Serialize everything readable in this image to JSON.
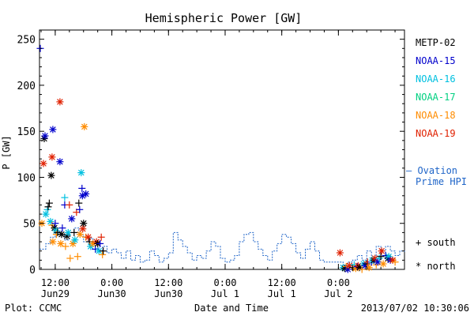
{
  "chart_data": {
    "type": "scatter",
    "title": "Hemispheric Power [GW]",
    "ylabel": "P [GW]",
    "xlabel": "Date and Time",
    "ylim": [
      0,
      260
    ],
    "xlim": [
      "2013-06-29T08:40",
      "2013-07-02T14:00"
    ],
    "yticks": [
      0,
      50,
      100,
      150,
      200,
      250
    ],
    "xticks": [
      {
        "t": "2013-06-29T12:00",
        "line1": "12:00",
        "line2": "Jun29"
      },
      {
        "t": "2013-06-30T00:00",
        "line1": "0:00",
        "line2": "Jun30"
      },
      {
        "t": "2013-06-30T12:00",
        "line1": "12:00",
        "line2": "Jun30"
      },
      {
        "t": "2013-07-01T00:00",
        "line1": "0:00",
        "line2": "Jul 1"
      },
      {
        "t": "2013-07-01T12:00",
        "line1": "12:00",
        "line2": "Jul 1"
      },
      {
        "t": "2013-07-02T00:00",
        "line1": "0:00",
        "line2": "Jul 2"
      }
    ],
    "legend": [
      {
        "name": "METP-02",
        "color": "#000000"
      },
      {
        "name": "NOAA-15",
        "color": "#0000cc"
      },
      {
        "name": "NOAA-16",
        "color": "#00c0e0"
      },
      {
        "name": "NOAA-17",
        "color": "#00d080"
      },
      {
        "name": "NOAA-18",
        "color": "#ff8c00"
      },
      {
        "name": "NOAA-19",
        "color": "#e02000"
      }
    ],
    "ovation_label": [
      "— Ovation",
      "Prime HPI"
    ],
    "ovation_color": "#1e64c8",
    "marker_legend": [
      {
        "symbol": "+",
        "label": "south"
      },
      {
        "symbol": "*",
        "label": "north"
      }
    ],
    "ovation": [
      [
        "2013-06-29T08:40",
        22
      ],
      [
        "2013-06-29T10:00",
        28
      ],
      [
        "2013-06-29T11:00",
        35
      ],
      [
        "2013-06-29T12:00",
        42
      ],
      [
        "2013-06-29T13:00",
        38
      ],
      [
        "2013-06-29T14:00",
        32
      ],
      [
        "2013-06-29T15:00",
        40
      ],
      [
        "2013-06-29T16:00",
        45
      ],
      [
        "2013-06-29T17:00",
        38
      ],
      [
        "2013-06-29T18:00",
        30
      ],
      [
        "2013-06-29T19:00",
        34
      ],
      [
        "2013-06-29T20:00",
        28
      ],
      [
        "2013-06-29T21:00",
        20
      ],
      [
        "2013-06-29T22:00",
        25
      ],
      [
        "2013-06-29T23:00",
        18
      ],
      [
        "2013-06-30T00:00",
        22
      ],
      [
        "2013-06-30T01:00",
        18
      ],
      [
        "2013-06-30T02:00",
        12
      ],
      [
        "2013-06-30T03:00",
        20
      ],
      [
        "2013-06-30T04:00",
        10
      ],
      [
        "2013-06-30T05:00",
        15
      ],
      [
        "2013-06-30T06:00",
        8
      ],
      [
        "2013-06-30T07:00",
        10
      ],
      [
        "2013-06-30T08:00",
        20
      ],
      [
        "2013-06-30T09:00",
        15
      ],
      [
        "2013-06-30T10:00",
        8
      ],
      [
        "2013-06-30T11:00",
        12
      ],
      [
        "2013-06-30T12:00",
        18
      ],
      [
        "2013-06-30T13:00",
        40
      ],
      [
        "2013-06-30T14:00",
        32
      ],
      [
        "2013-06-30T15:00",
        25
      ],
      [
        "2013-06-30T16:00",
        18
      ],
      [
        "2013-06-30T17:00",
        10
      ],
      [
        "2013-06-30T18:00",
        15
      ],
      [
        "2013-06-30T19:00",
        12
      ],
      [
        "2013-06-30T20:00",
        20
      ],
      [
        "2013-06-30T21:00",
        30
      ],
      [
        "2013-06-30T22:00",
        25
      ],
      [
        "2013-06-30T23:00",
        12
      ],
      [
        "2013-07-01T00:00",
        8
      ],
      [
        "2013-07-01T01:00",
        10
      ],
      [
        "2013-07-01T02:00",
        15
      ],
      [
        "2013-07-01T03:00",
        30
      ],
      [
        "2013-07-01T04:00",
        38
      ],
      [
        "2013-07-01T05:00",
        40
      ],
      [
        "2013-07-01T06:00",
        30
      ],
      [
        "2013-07-01T07:00",
        22
      ],
      [
        "2013-07-01T08:00",
        15
      ],
      [
        "2013-07-01T09:00",
        10
      ],
      [
        "2013-07-01T10:00",
        20
      ],
      [
        "2013-07-01T11:00",
        28
      ],
      [
        "2013-07-01T12:00",
        38
      ],
      [
        "2013-07-01T13:00",
        35
      ],
      [
        "2013-07-01T14:00",
        28
      ],
      [
        "2013-07-01T15:00",
        18
      ],
      [
        "2013-07-01T16:00",
        12
      ],
      [
        "2013-07-01T17:00",
        22
      ],
      [
        "2013-07-01T18:00",
        30
      ],
      [
        "2013-07-01T19:00",
        20
      ],
      [
        "2013-07-01T20:00",
        10
      ],
      [
        "2013-07-01T21:00",
        8
      ],
      [
        "2013-07-01T22:00",
        8
      ],
      [
        "2013-07-01T23:00",
        8
      ],
      [
        "2013-07-02T00:00",
        8
      ],
      [
        "2013-07-02T01:00",
        5
      ],
      [
        "2013-07-02T02:00",
        8
      ],
      [
        "2013-07-02T03:00",
        10
      ],
      [
        "2013-07-02T04:00",
        15
      ],
      [
        "2013-07-02T05:00",
        10
      ],
      [
        "2013-07-02T06:00",
        20
      ],
      [
        "2013-07-02T07:00",
        12
      ],
      [
        "2013-07-02T08:00",
        25
      ],
      [
        "2013-07-02T09:00",
        15
      ],
      [
        "2013-07-02T10:00",
        25
      ],
      [
        "2013-07-02T11:00",
        20
      ],
      [
        "2013-07-02T12:00",
        15
      ],
      [
        "2013-07-02T13:00",
        20
      ],
      [
        "2013-07-02T14:00",
        18
      ]
    ],
    "points": [
      {
        "sat": "NOAA-15",
        "hemi": "south",
        "t": "2013-06-29T08:50",
        "v": 240
      },
      {
        "sat": "NOAA-19",
        "hemi": "north",
        "t": "2013-06-29T09:30",
        "v": 115
      },
      {
        "sat": "METP-02",
        "hemi": "north",
        "t": "2013-06-29T09:40",
        "v": 142
      },
      {
        "sat": "NOAA-15",
        "hemi": "north",
        "t": "2013-06-29T09:50",
        "v": 145
      },
      {
        "sat": "NOAA-18",
        "hemi": "north",
        "t": "2013-06-29T09:10",
        "v": 50
      },
      {
        "sat": "NOAA-16",
        "hemi": "north",
        "t": "2013-06-29T10:00",
        "v": 60
      },
      {
        "sat": "NOAA-16",
        "hemi": "south",
        "t": "2013-06-29T10:20",
        "v": 65
      },
      {
        "sat": "METP-02",
        "hemi": "south",
        "t": "2013-06-29T10:30",
        "v": 68
      },
      {
        "sat": "METP-02",
        "hemi": "south",
        "t": "2013-06-29T10:45",
        "v": 72
      },
      {
        "sat": "NOAA-19",
        "hemi": "north",
        "t": "2013-06-29T11:20",
        "v": 122
      },
      {
        "sat": "NOAA-15",
        "hemi": "north",
        "t": "2013-06-29T11:30",
        "v": 152
      },
      {
        "sat": "METP-02",
        "hemi": "north",
        "t": "2013-06-29T11:10",
        "v": 102
      },
      {
        "sat": "NOAA-16",
        "hemi": "north",
        "t": "2013-06-29T11:00",
        "v": 52
      },
      {
        "sat": "NOAA-18",
        "hemi": "south",
        "t": "2013-06-29T11:20",
        "v": 48
      },
      {
        "sat": "NOAA-18",
        "hemi": "north",
        "t": "2013-06-29T11:30",
        "v": 30
      },
      {
        "sat": "METP-02",
        "hemi": "north",
        "t": "2013-06-29T11:50",
        "v": 45
      },
      {
        "sat": "NOAA-15",
        "hemi": "south",
        "t": "2013-06-29T12:00",
        "v": 50
      },
      {
        "sat": "NOAA-16",
        "hemi": "north",
        "t": "2013-06-29T12:10",
        "v": 42
      },
      {
        "sat": "NOAA-18",
        "hemi": "south",
        "t": "2013-06-29T12:15",
        "v": 38
      },
      {
        "sat": "METP-02",
        "hemi": "south",
        "t": "2013-06-29T12:30",
        "v": 40
      },
      {
        "sat": "NOAA-15",
        "hemi": "north",
        "t": "2013-06-29T13:00",
        "v": 117
      },
      {
        "sat": "NOAA-19",
        "hemi": "north",
        "t": "2013-06-29T13:00",
        "v": 182
      },
      {
        "sat": "NOAA-18",
        "hemi": "north",
        "t": "2013-06-29T13:10",
        "v": 28
      },
      {
        "sat": "METP-02",
        "hemi": "north",
        "t": "2013-06-29T13:20",
        "v": 38
      },
      {
        "sat": "NOAA-15",
        "hemi": "south",
        "t": "2013-06-29T13:30",
        "v": 45
      },
      {
        "sat": "NOAA-16",
        "hemi": "south",
        "t": "2013-06-29T14:00",
        "v": 78
      },
      {
        "sat": "NOAA-15",
        "hemi": "south",
        "t": "2013-06-29T14:00",
        "v": 70
      },
      {
        "sat": "NOAA-18",
        "hemi": "south",
        "t": "2013-06-29T14:10",
        "v": 25
      },
      {
        "sat": "METP-02",
        "hemi": "north",
        "t": "2013-06-29T14:30",
        "v": 36
      },
      {
        "sat": "NOAA-16",
        "hemi": "north",
        "t": "2013-06-29T14:45",
        "v": 40
      },
      {
        "sat": "NOAA-19",
        "hemi": "south",
        "t": "2013-06-29T15:00",
        "v": 70
      },
      {
        "sat": "NOAA-18",
        "hemi": "south",
        "t": "2013-06-29T15:10",
        "v": 12
      },
      {
        "sat": "NOAA-15",
        "hemi": "north",
        "t": "2013-06-29T15:30",
        "v": 55
      },
      {
        "sat": "NOAA-18",
        "hemi": "north",
        "t": "2013-06-29T15:45",
        "v": 28
      },
      {
        "sat": "METP-02",
        "hemi": "south",
        "t": "2013-06-29T16:00",
        "v": 40
      },
      {
        "sat": "NOAA-16",
        "hemi": "north",
        "t": "2013-06-29T16:10",
        "v": 32
      },
      {
        "sat": "NOAA-19",
        "hemi": "south",
        "t": "2013-06-29T16:30",
        "v": 62
      },
      {
        "sat": "NOAA-18",
        "hemi": "south",
        "t": "2013-06-29T16:45",
        "v": 14
      },
      {
        "sat": "METP-02",
        "hemi": "south",
        "t": "2013-06-29T17:00",
        "v": 72
      },
      {
        "sat": "NOAA-15",
        "hemi": "south",
        "t": "2013-06-29T17:10",
        "v": 65
      },
      {
        "sat": "NOAA-18",
        "hemi": "north",
        "t": "2013-06-29T17:15",
        "v": 38
      },
      {
        "sat": "NOAA-16",
        "hemi": "north",
        "t": "2013-06-29T17:30",
        "v": 105
      },
      {
        "sat": "NOAA-15",
        "hemi": "south",
        "t": "2013-06-29T17:40",
        "v": 88
      },
      {
        "sat": "NOAA-15",
        "hemi": "north",
        "t": "2013-06-29T17:45",
        "v": 80
      },
      {
        "sat": "NOAA-19",
        "hemi": "north",
        "t": "2013-06-29T17:50",
        "v": 44
      },
      {
        "sat": "METP-02",
        "hemi": "north",
        "t": "2013-06-29T18:00",
        "v": 50
      },
      {
        "sat": "NOAA-18",
        "hemi": "north",
        "t": "2013-06-29T18:10",
        "v": 155
      },
      {
        "sat": "NOAA-15",
        "hemi": "north",
        "t": "2013-06-29T18:30",
        "v": 82
      },
      {
        "sat": "NOAA-18",
        "hemi": "south",
        "t": "2013-06-29T18:30",
        "v": 35
      },
      {
        "sat": "NOAA-19",
        "hemi": "north",
        "t": "2013-06-29T19:00",
        "v": 35
      },
      {
        "sat": "METP-02",
        "hemi": "south",
        "t": "2013-06-29T19:15",
        "v": 30
      },
      {
        "sat": "NOAA-16",
        "hemi": "north",
        "t": "2013-06-29T19:30",
        "v": 25
      },
      {
        "sat": "NOAA-18",
        "hemi": "north",
        "t": "2013-06-29T20:00",
        "v": 28
      },
      {
        "sat": "NOAA-15",
        "hemi": "south",
        "t": "2013-06-29T20:30",
        "v": 22
      },
      {
        "sat": "NOAA-19",
        "hemi": "north",
        "t": "2013-06-29T20:45",
        "v": 30
      },
      {
        "sat": "METP-02",
        "hemi": "north",
        "t": "2013-06-29T21:00",
        "v": 28
      },
      {
        "sat": "NOAA-16",
        "hemi": "north",
        "t": "2013-06-29T21:15",
        "v": 20
      },
      {
        "sat": "NOAA-15",
        "hemi": "south",
        "t": "2013-06-29T21:30",
        "v": 28
      },
      {
        "sat": "NOAA-19",
        "hemi": "south",
        "t": "2013-06-29T21:45",
        "v": 35
      },
      {
        "sat": "NOAA-18",
        "hemi": "south",
        "t": "2013-06-29T22:00",
        "v": 16
      },
      {
        "sat": "METP-02",
        "hemi": "south",
        "t": "2013-06-29T22:10",
        "v": 20
      },
      {
        "sat": "NOAA-19",
        "hemi": "north",
        "t": "2013-07-02T00:20",
        "v": 18
      },
      {
        "sat": "NOAA-16",
        "hemi": "north",
        "t": "2013-07-02T01:00",
        "v": 2
      },
      {
        "sat": "METP-02",
        "hemi": "north",
        "t": "2013-07-02T01:20",
        "v": 1
      },
      {
        "sat": "NOAA-18",
        "hemi": "south",
        "t": "2013-07-02T01:40",
        "v": 3
      },
      {
        "sat": "NOAA-15",
        "hemi": "north",
        "t": "2013-07-02T02:00",
        "v": 0
      },
      {
        "sat": "NOAA-19",
        "hemi": "north",
        "t": "2013-07-02T02:20",
        "v": 4
      },
      {
        "sat": "METP-02",
        "hemi": "south",
        "t": "2013-07-02T03:00",
        "v": 2
      },
      {
        "sat": "NOAA-16",
        "hemi": "south",
        "t": "2013-07-02T03:20",
        "v": 5
      },
      {
        "sat": "NOAA-18",
        "hemi": "north",
        "t": "2013-07-02T03:40",
        "v": 1
      },
      {
        "sat": "NOAA-15",
        "hemi": "south",
        "t": "2013-07-02T04:00",
        "v": 3
      },
      {
        "sat": "NOAA-19",
        "hemi": "north",
        "t": "2013-07-02T04:10",
        "v": 4
      },
      {
        "sat": "METP-02",
        "hemi": "north",
        "t": "2013-07-02T04:30",
        "v": 2
      },
      {
        "sat": "NOAA-18",
        "hemi": "south",
        "t": "2013-07-02T05:00",
        "v": 0
      },
      {
        "sat": "NOAA-16",
        "hemi": "north",
        "t": "2013-07-02T05:20",
        "v": 6
      },
      {
        "sat": "NOAA-15",
        "hemi": "north",
        "t": "2013-07-02T05:40",
        "v": 4
      },
      {
        "sat": "METP-02",
        "hemi": "south",
        "t": "2013-07-02T06:00",
        "v": 6
      },
      {
        "sat": "NOAA-19",
        "hemi": "south",
        "t": "2013-07-02T06:10",
        "v": 8
      },
      {
        "sat": "NOAA-18",
        "hemi": "north",
        "t": "2013-07-02T06:30",
        "v": 2
      },
      {
        "sat": "NOAA-15",
        "hemi": "south",
        "t": "2013-07-02T07:00",
        "v": 8
      },
      {
        "sat": "NOAA-16",
        "hemi": "north",
        "t": "2013-07-02T07:10",
        "v": 10
      },
      {
        "sat": "METP-02",
        "hemi": "north",
        "t": "2013-07-02T07:30",
        "v": 10
      },
      {
        "sat": "NOAA-19",
        "hemi": "north",
        "t": "2013-07-02T07:45",
        "v": 12
      },
      {
        "sat": "NOAA-18",
        "hemi": "south",
        "t": "2013-07-02T08:00",
        "v": 5
      },
      {
        "sat": "NOAA-15",
        "hemi": "north",
        "t": "2013-07-02T08:20",
        "v": 8
      },
      {
        "sat": "NOAA-16",
        "hemi": "south",
        "t": "2013-07-02T08:40",
        "v": 12
      },
      {
        "sat": "METP-02",
        "hemi": "south",
        "t": "2013-07-02T09:00",
        "v": 14
      },
      {
        "sat": "NOAA-19",
        "hemi": "north",
        "t": "2013-07-02T09:10",
        "v": 20
      },
      {
        "sat": "NOAA-18",
        "hemi": "north",
        "t": "2013-07-02T09:30",
        "v": 6
      },
      {
        "sat": "NOAA-15",
        "hemi": "south",
        "t": "2013-07-02T10:00",
        "v": 15
      },
      {
        "sat": "METP-02",
        "hemi": "north",
        "t": "2013-07-02T10:30",
        "v": 12
      },
      {
        "sat": "NOAA-16",
        "hemi": "north",
        "t": "2013-07-02T10:40",
        "v": 14
      },
      {
        "sat": "NOAA-15",
        "hemi": "north",
        "t": "2013-07-02T11:00",
        "v": 10
      },
      {
        "sat": "NOAA-19",
        "hemi": "north",
        "t": "2013-07-02T11:30",
        "v": 10
      },
      {
        "sat": "NOAA-18",
        "hemi": "south",
        "t": "2013-07-02T12:00",
        "v": 8
      }
    ]
  },
  "footer": {
    "left": "Plot: CCMC",
    "right": "2013/07/02 10:30:06"
  }
}
